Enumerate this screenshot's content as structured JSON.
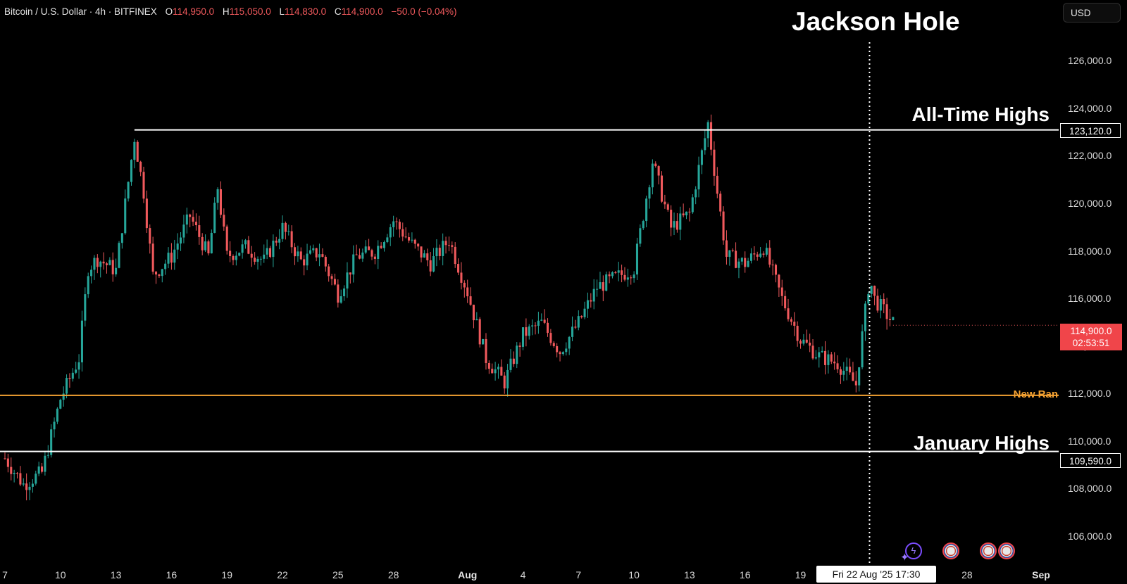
{
  "header": {
    "symbol": "Bitcoin / U.S. Dollar · 4h · BITFINEX",
    "o_label": "O",
    "o_value": "114,950.0",
    "h_label": "H",
    "h_value": "115,050.0",
    "l_label": "L",
    "l_value": "114,830.0",
    "c_label": "C",
    "c_value": "114,900.0",
    "change": "−50.0 (−0.04%)"
  },
  "currency_button": "USD",
  "annotations": {
    "event_title": "Jackson Hole",
    "ath_label": "All-Time Highs",
    "range_label": "New Ran",
    "jan_label": "January Highs"
  },
  "price_tags": {
    "ath": "123,120.0",
    "jan": "109,590.0",
    "last_price": "114,900.0",
    "countdown": "02:53:51"
  },
  "crosshair_label": "Fri 22 Aug '25   17:30",
  "colors": {
    "up": "#26a69a",
    "down": "#f0595c",
    "range_line": "#f5a232",
    "level_line": "#ffffff",
    "event_icon": "#7c4dff"
  },
  "chart_data": {
    "type": "candlestick",
    "symbol": "BTCUSD",
    "interval": "4h",
    "exchange": "BITFINEX",
    "y_ticks": [
      "106,000.0",
      "108,000.0",
      "110,000.0",
      "112,000.0",
      "114,000.0",
      "116,000.0",
      "118,000.0",
      "120,000.0",
      "122,000.0",
      "124,000.0",
      "126,000.0"
    ],
    "x_ticks": [
      {
        "label": "7",
        "value": "2025-07-07"
      },
      {
        "label": "10",
        "value": "2025-07-10"
      },
      {
        "label": "13",
        "value": "2025-07-13"
      },
      {
        "label": "16",
        "value": "2025-07-16"
      },
      {
        "label": "19",
        "value": "2025-07-19"
      },
      {
        "label": "22",
        "value": "2025-07-22"
      },
      {
        "label": "25",
        "value": "2025-07-25"
      },
      {
        "label": "28",
        "value": "2025-07-28"
      },
      {
        "label": "Aug",
        "value": "2025-08-01"
      },
      {
        "label": "4",
        "value": "2025-08-04"
      },
      {
        "label": "7",
        "value": "2025-08-07"
      },
      {
        "label": "10",
        "value": "2025-08-10"
      },
      {
        "label": "13",
        "value": "2025-08-13"
      },
      {
        "label": "16",
        "value": "2025-08-16"
      },
      {
        "label": "19",
        "value": "2025-08-19"
      },
      {
        "label": "28",
        "value": "2025-08-28"
      },
      {
        "label": "Sep",
        "value": "2025-09-01"
      }
    ],
    "x_range": [
      "2025-07-07",
      "2025-09-01"
    ],
    "y_range": [
      104900,
      127400
    ],
    "horizontal_levels": [
      {
        "name": "All-Time Highs",
        "value": 123120,
        "start": "2025-07-14",
        "color": "#ffffff"
      },
      {
        "name": "New Ran",
        "value": 111950,
        "start": "2025-07-06",
        "color": "#f5a232"
      },
      {
        "name": "January Highs",
        "value": 109590,
        "start": "2025-07-06",
        "color": "#ffffff"
      }
    ],
    "vertical_marker": {
      "name": "Jackson Hole",
      "time": "2025-08-22 17:30"
    },
    "series": [
      {
        "date": "2025-07-07",
        "close": 109300
      },
      {
        "date": "2025-07-08",
        "close": 108200
      },
      {
        "date": "2025-07-09",
        "close": 108700
      },
      {
        "date": "2025-07-10",
        "close": 111800
      },
      {
        "date": "2025-07-11",
        "close": 113500
      },
      {
        "date": "2025-07-11 12:00",
        "close": 117300
      },
      {
        "date": "2025-07-12",
        "close": 117700
      },
      {
        "date": "2025-07-13",
        "close": 117200
      },
      {
        "date": "2025-07-14",
        "close": 122800
      },
      {
        "date": "2025-07-14 12:00",
        "close": 120500
      },
      {
        "date": "2025-07-15",
        "close": 117000
      },
      {
        "date": "2025-07-16",
        "close": 117800
      },
      {
        "date": "2025-07-17",
        "close": 119500
      },
      {
        "date": "2025-07-18",
        "close": 117800
      },
      {
        "date": "2025-07-18 12:00",
        "close": 120700
      },
      {
        "date": "2025-07-19",
        "close": 117800
      },
      {
        "date": "2025-07-20",
        "close": 118200
      },
      {
        "date": "2025-07-21",
        "close": 117600
      },
      {
        "date": "2025-07-22",
        "close": 119000
      },
      {
        "date": "2025-07-23",
        "close": 117600
      },
      {
        "date": "2025-07-24",
        "close": 118000
      },
      {
        "date": "2025-07-25",
        "close": 116200
      },
      {
        "date": "2025-07-26",
        "close": 117800
      },
      {
        "date": "2025-07-27",
        "close": 118000
      },
      {
        "date": "2025-07-28",
        "close": 119300
      },
      {
        "date": "2025-07-29",
        "close": 118300
      },
      {
        "date": "2025-07-30",
        "close": 117500
      },
      {
        "date": "2025-07-31",
        "close": 118500
      },
      {
        "date": "2025-08-01",
        "close": 116300
      },
      {
        "date": "2025-08-02",
        "close": 113500
      },
      {
        "date": "2025-08-03",
        "close": 112500
      },
      {
        "date": "2025-08-04",
        "close": 114500
      },
      {
        "date": "2025-08-05",
        "close": 115000
      },
      {
        "date": "2025-08-06",
        "close": 113800
      },
      {
        "date": "2025-08-07",
        "close": 115000
      },
      {
        "date": "2025-08-08",
        "close": 116500
      },
      {
        "date": "2025-08-09",
        "close": 116900
      },
      {
        "date": "2025-08-10",
        "close": 117300
      },
      {
        "date": "2025-08-11",
        "close": 121800
      },
      {
        "date": "2025-08-12",
        "close": 119000
      },
      {
        "date": "2025-08-13",
        "close": 119600
      },
      {
        "date": "2025-08-14",
        "close": 123400
      },
      {
        "date": "2025-08-14 12:00",
        "close": 120500
      },
      {
        "date": "2025-08-15",
        "close": 117800
      },
      {
        "date": "2025-08-16",
        "close": 117500
      },
      {
        "date": "2025-08-17",
        "close": 118200
      },
      {
        "date": "2025-08-18",
        "close": 116000
      },
      {
        "date": "2025-08-19",
        "close": 114300
      },
      {
        "date": "2025-08-20",
        "close": 113600
      },
      {
        "date": "2025-08-21",
        "close": 113300
      },
      {
        "date": "2025-08-22",
        "close": 112400
      },
      {
        "date": "2025-08-22 17:30",
        "close": 116900
      },
      {
        "date": "2025-08-23",
        "close": 116000
      },
      {
        "date": "2025-08-24",
        "close": 115000
      }
    ],
    "last_price": 114900
  }
}
